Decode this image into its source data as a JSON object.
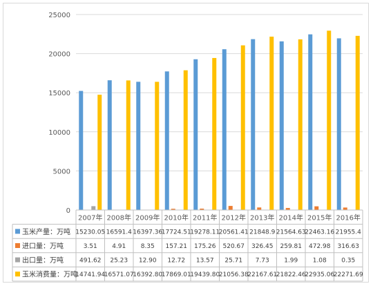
{
  "chart_data": {
    "type": "bar",
    "categories": [
      "2007年",
      "2008年",
      "2009年",
      "2010年",
      "2011年",
      "2012年",
      "2013年",
      "2014年",
      "2015年",
      "2016年"
    ],
    "series": [
      {
        "name": "玉米产量：万吨",
        "color": "#5b9bd5",
        "values": [
          15230.05,
          16591.4,
          16397.36,
          17724.51,
          19278.11,
          20561.41,
          21848.9,
          21564.63,
          22463.16,
          21955.4
        ],
        "labels": [
          "15230.05",
          "16591.4",
          "16397.36",
          "17724.51",
          "19278.11",
          "20561.41",
          "21848.9",
          "21564.63",
          "22463.16",
          "21955.4"
        ]
      },
      {
        "name": "进口量：万吨",
        "color": "#ed7d31",
        "values": [
          3.51,
          4.91,
          8.35,
          157.21,
          175.26,
          520.67,
          326.45,
          259.81,
          472.98,
          316.63
        ],
        "labels": [
          "3.51",
          "4.91",
          "8.35",
          "157.21",
          "175.26",
          "520.67",
          "326.45",
          "259.81",
          "472.98",
          "316.63"
        ]
      },
      {
        "name": "出口量：万吨",
        "color": "#a5a5a5",
        "values": [
          491.62,
          25.23,
          12.9,
          12.72,
          13.57,
          25.71,
          7.73,
          1.99,
          1.08,
          0.35
        ],
        "labels": [
          "491.62",
          "25.23",
          "12.90",
          "12.72",
          "13.57",
          "25.71",
          "7.73",
          "1.99",
          "1.08",
          "0.35"
        ]
      },
      {
        "name": "玉米消费量：万吨",
        "color": "#ffc000",
        "values": [
          14741.94,
          16571.07,
          16392.8,
          17869.01,
          19439.8,
          21056.38,
          22167.61,
          21822.46,
          22935.06,
          22271.69
        ],
        "labels": [
          "14741.94",
          "16571.07",
          "16392.80",
          "17869.01",
          "19439.80",
          "21056.38",
          "22167.61",
          "21822.46",
          "22935.06",
          "22271.69"
        ]
      }
    ],
    "yticks": [
      "0",
      "5000",
      "10000",
      "15000",
      "20000",
      "25000"
    ],
    "ylim": [
      0,
      25000
    ],
    "grid": true,
    "legend": "data-table"
  }
}
